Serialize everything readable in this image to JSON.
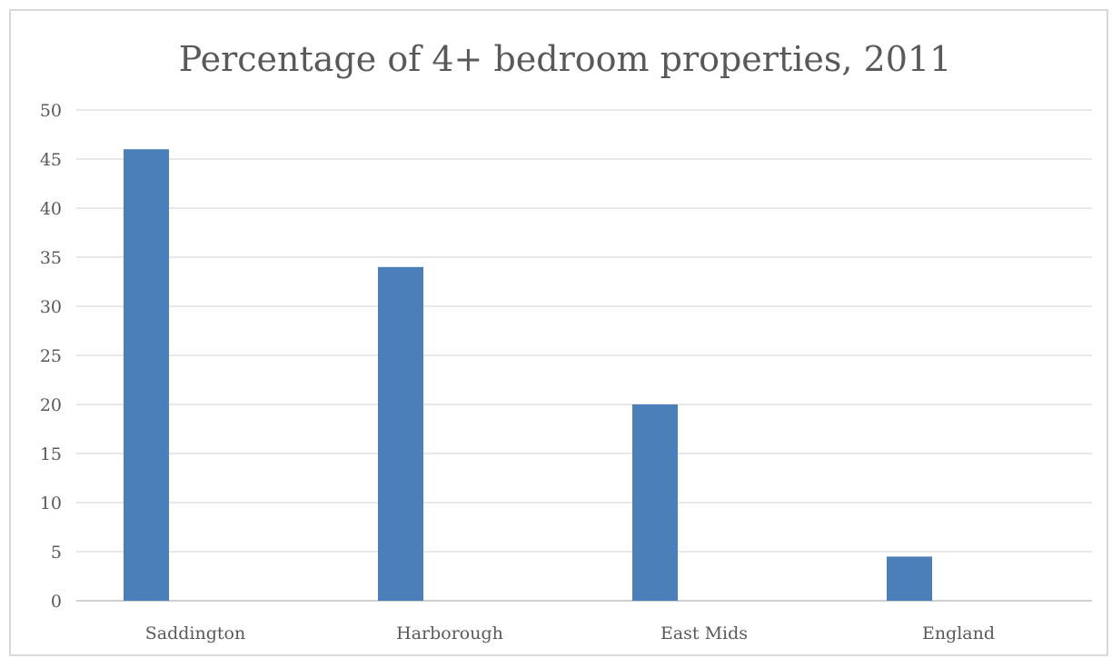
{
  "chart_data": {
    "type": "bar",
    "title": "Percentage of 4+ bedroom properties, 2011",
    "xlabel": "",
    "ylabel": "",
    "categories": [
      "Saddington",
      "Harborough",
      "East Mids",
      "England"
    ],
    "values": [
      46,
      34,
      20,
      4.5
    ],
    "ylim": [
      0,
      50
    ],
    "yticks": [
      0,
      5,
      10,
      15,
      20,
      25,
      30,
      35,
      40,
      45,
      50
    ],
    "grid": true,
    "legend": "none",
    "bar_color": "#4a7fba",
    "grid_color": "#d9d9d9"
  }
}
